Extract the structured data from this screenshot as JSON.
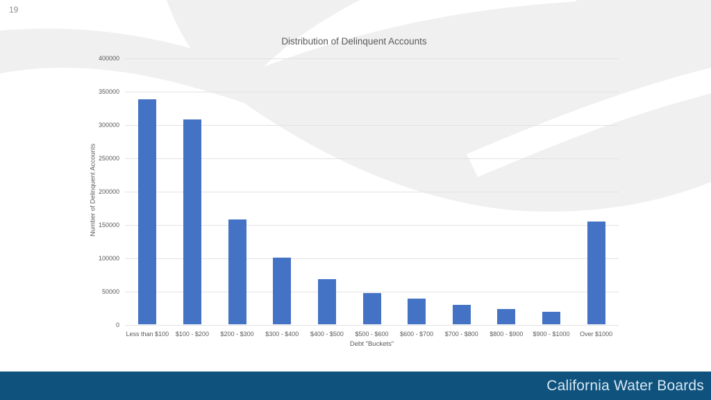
{
  "slide": {
    "page_number": "19",
    "footer_brand": "California Water Boards",
    "colors": {
      "footer_background": "#0e527d",
      "footer_text": "#d9e8f4",
      "bar": "#4472c4",
      "swoosh_gray": "#f0f0f0",
      "text_gray": "#595959",
      "gridline": "#e2e2e2"
    }
  },
  "chart_data": {
    "type": "bar",
    "title": "Distribution of Delinquent Accounts",
    "xlabel": "Debt \"Buckets\"",
    "ylabel": "Number of Delinquent Accounts",
    "categories": [
      "Less than $100",
      "$100 - $200",
      "$200 - $300",
      "$300 - $400",
      "$400 - $500",
      "$500 - $600",
      "$600 - $700",
      "$700 - $800",
      "$800 - $900",
      "$900 - $1000",
      "Over $1000"
    ],
    "values": [
      338000,
      308000,
      158000,
      101000,
      68000,
      47000,
      39000,
      30000,
      23000,
      19000,
      155000
    ],
    "ylim": [
      0,
      400000
    ],
    "ytick_step": 50000,
    "ytick_labels": [
      "0",
      "50000",
      "100000",
      "150000",
      "200000",
      "250000",
      "300000",
      "350000",
      "400000"
    ],
    "grid": true,
    "legend": false,
    "bar_color": "#4472c4"
  }
}
